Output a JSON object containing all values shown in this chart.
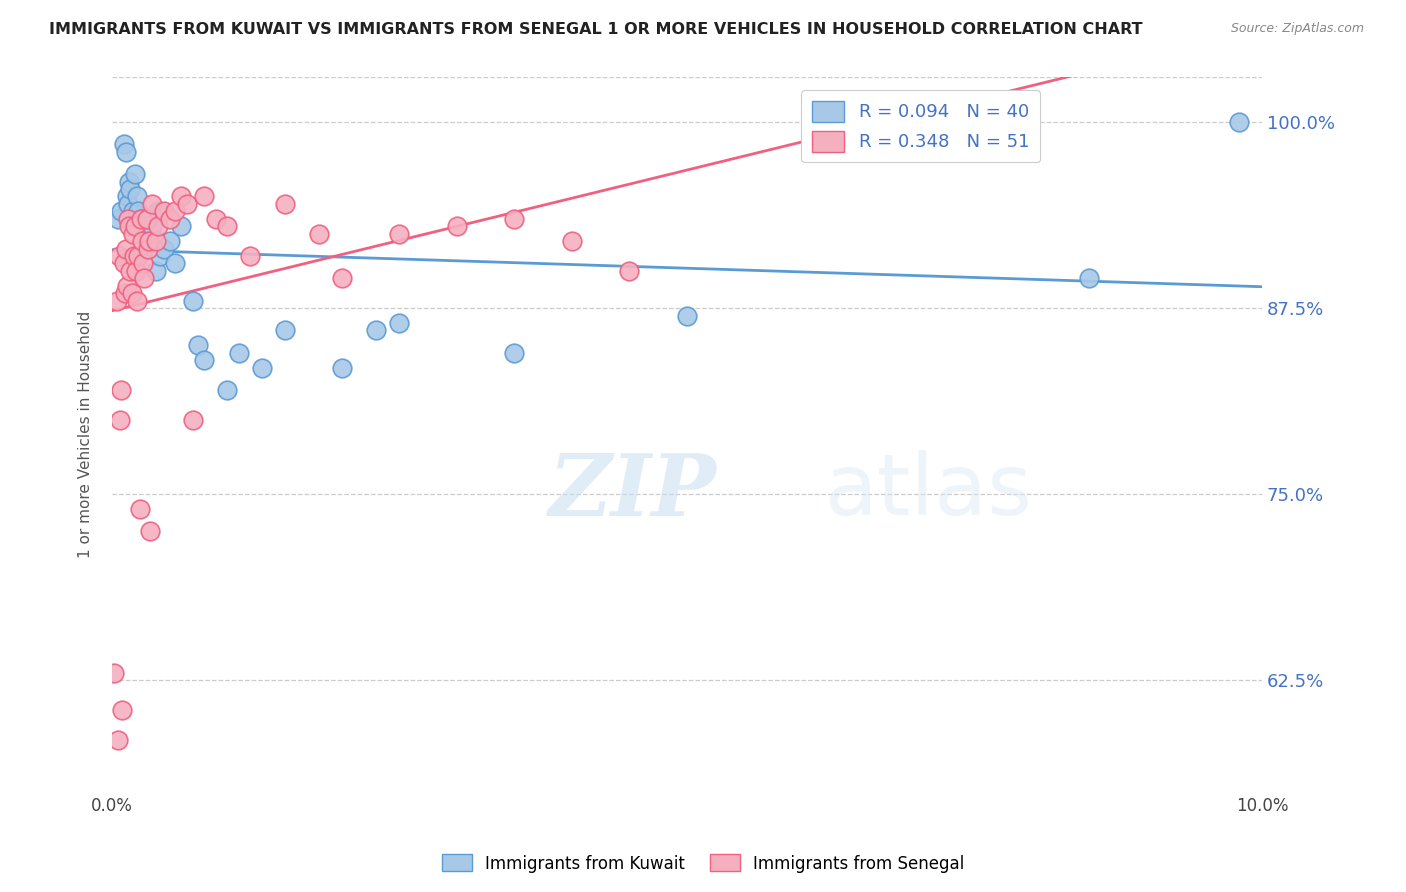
{
  "title": "IMMIGRANTS FROM KUWAIT VS IMMIGRANTS FROM SENEGAL 1 OR MORE VEHICLES IN HOUSEHOLD CORRELATION CHART",
  "source": "Source: ZipAtlas.com",
  "ylabel": "1 or more Vehicles in Household",
  "yticks": [
    62.5,
    75.0,
    87.5,
    100.0
  ],
  "ytick_labels": [
    "62.5%",
    "75.0%",
    "87.5%",
    "100.0%"
  ],
  "xlim": [
    0.0,
    10.0
  ],
  "ylim": [
    55.0,
    103.0
  ],
  "kuwait_R": 0.094,
  "kuwait_N": 40,
  "senegal_R": 0.348,
  "senegal_N": 51,
  "kuwait_color": "#a8c8e8",
  "senegal_color": "#f5b0c0",
  "kuwait_line_color": "#5b9bd5",
  "senegal_line_color": "#f06080",
  "watermark": "ZIPatlas",
  "kuwait_x": [
    0.05,
    0.08,
    0.1,
    0.12,
    0.13,
    0.14,
    0.15,
    0.16,
    0.18,
    0.2,
    0.21,
    0.22,
    0.23,
    0.25,
    0.27,
    0.28,
    0.3,
    0.32,
    0.35,
    0.38,
    0.4,
    0.42,
    0.45,
    0.5,
    0.55,
    0.6,
    0.7,
    0.75,
    0.8,
    1.0,
    1.1,
    1.3,
    1.5,
    2.0,
    2.3,
    2.5,
    3.5,
    5.0,
    8.5,
    9.8
  ],
  "kuwait_y": [
    93.5,
    94.0,
    98.5,
    98.0,
    95.0,
    94.5,
    96.0,
    95.5,
    94.0,
    96.5,
    93.0,
    95.0,
    94.0,
    93.5,
    92.5,
    93.0,
    92.0,
    91.5,
    93.0,
    90.0,
    94.0,
    91.0,
    91.5,
    92.0,
    90.5,
    93.0,
    88.0,
    85.0,
    84.0,
    82.0,
    84.5,
    83.5,
    86.0,
    83.5,
    86.0,
    86.5,
    84.5,
    87.0,
    89.5,
    100.0
  ],
  "senegal_x": [
    0.02,
    0.04,
    0.06,
    0.07,
    0.08,
    0.1,
    0.11,
    0.12,
    0.13,
    0.14,
    0.15,
    0.16,
    0.17,
    0.18,
    0.19,
    0.2,
    0.21,
    0.22,
    0.23,
    0.25,
    0.26,
    0.27,
    0.28,
    0.3,
    0.31,
    0.32,
    0.35,
    0.38,
    0.4,
    0.45,
    0.5,
    0.55,
    0.6,
    0.65,
    0.7,
    0.8,
    0.9,
    1.0,
    1.2,
    1.5,
    1.8,
    2.0,
    2.5,
    3.0,
    3.5,
    4.0,
    4.5,
    0.05,
    0.09,
    0.24,
    0.33
  ],
  "senegal_y": [
    63.0,
    88.0,
    91.0,
    80.0,
    82.0,
    90.5,
    88.5,
    91.5,
    89.0,
    93.5,
    93.0,
    90.0,
    88.5,
    92.5,
    91.0,
    93.0,
    90.0,
    88.0,
    91.0,
    93.5,
    92.0,
    90.5,
    89.5,
    93.5,
    91.5,
    92.0,
    94.5,
    92.0,
    93.0,
    94.0,
    93.5,
    94.0,
    95.0,
    94.5,
    80.0,
    95.0,
    93.5,
    93.0,
    91.0,
    94.5,
    92.5,
    89.5,
    92.5,
    93.0,
    93.5,
    92.0,
    90.0,
    58.5,
    60.5,
    74.0,
    72.5
  ]
}
